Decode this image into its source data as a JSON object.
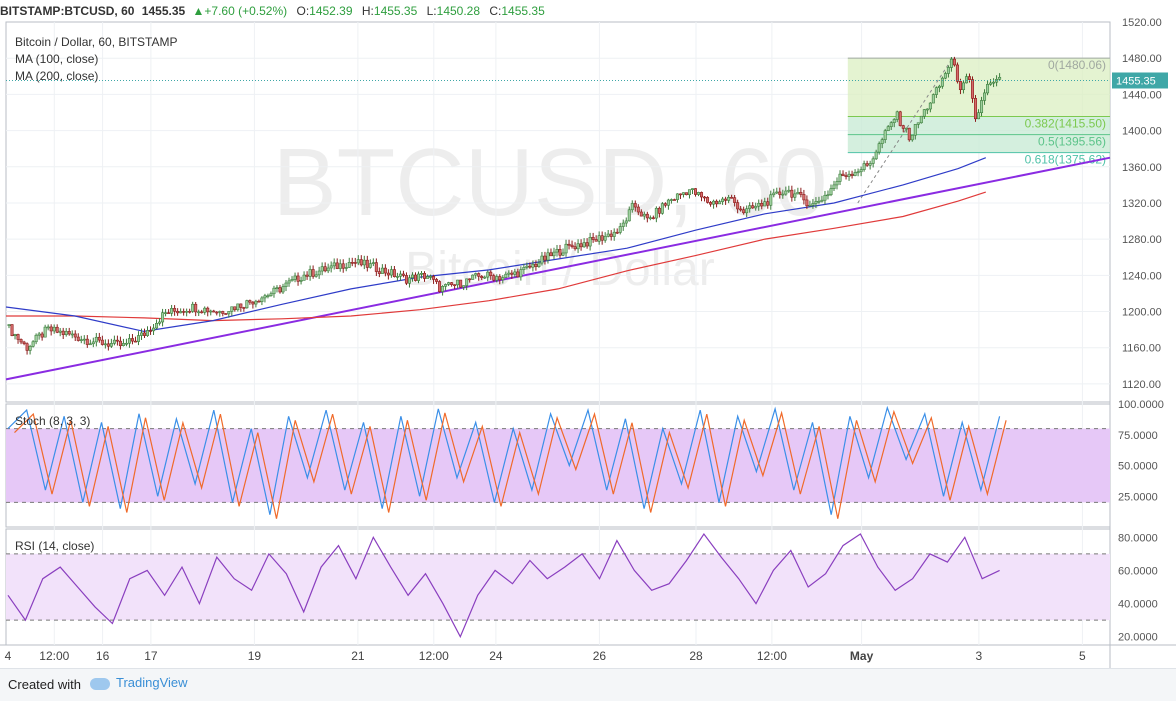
{
  "header": {
    "symbol": "BITSTAMP:BTCUSD, 60",
    "last": "1455.35",
    "change": "▲+7.60 (+0.52%)",
    "o_label": "O:",
    "o_value": "1452.39",
    "h_label": "H:",
    "h_value": "1455.35",
    "l_label": "L:",
    "l_value": "1450.28",
    "c_label": "C:",
    "c_value": "1455.35"
  },
  "legend": {
    "title": "Bitcoin / Dollar, 60, BITSTAMP",
    "ma100": "MA (100, close)",
    "ma200": "MA (200, close)"
  },
  "watermark": {
    "main": "BTCUSD, 60",
    "sub": "Bitcoin / Dollar"
  },
  "footer": {
    "created": "Created with",
    "brand": "TradingView"
  },
  "colors": {
    "up": "#3c7d3c",
    "down": "#8c1a1a",
    "ma100": "#2f3cc8",
    "ma200": "#e03a3a",
    "trend": "#8a2be2",
    "fib_fill": "#d8eebd",
    "fib_fill2": "#c9ebd6",
    "stoch_k": "#3a8fe8",
    "stoch_d": "#f06a2a",
    "stoch_band": "#e6c8f7",
    "rsi": "#8a3fbf",
    "rsi_band": "#f2e2fa",
    "brand": "#3a8fd6"
  },
  "chart_data": [
    {
      "type": "candlestick",
      "title": "Bitcoin / Dollar, 60, BITSTAMP",
      "ylim": [
        1100,
        1520
      ],
      "y_ticks": [
        1120,
        1160,
        1200,
        1240,
        1280,
        1320,
        1360,
        1400,
        1440,
        1480,
        1520
      ],
      "last_price": 1455.35,
      "x_ticks": [
        "4",
        "12:00",
        "16",
        "17",
        "19",
        "21",
        "12:00",
        "24",
        "26",
        "28",
        "12:00",
        "May",
        "3",
        "5"
      ],
      "x_tick_pos": [
        0.0,
        0.07,
        0.14,
        0.21,
        0.36,
        0.51,
        0.62,
        0.71,
        0.86,
        1.0,
        1.11,
        1.24,
        1.41,
        1.56
      ],
      "x_domain": [
        0,
        1.6
      ],
      "price_path": [
        [
          0,
          1185
        ],
        [
          0.03,
          1160
        ],
        [
          0.06,
          1180
        ],
        [
          0.09,
          1175
        ],
        [
          0.12,
          1168
        ],
        [
          0.17,
          1162
        ],
        [
          0.2,
          1175
        ],
        [
          0.23,
          1198
        ],
        [
          0.27,
          1205
        ],
        [
          0.31,
          1200
        ],
        [
          0.35,
          1210
        ],
        [
          0.39,
          1222
        ],
        [
          0.43,
          1240
        ],
        [
          0.47,
          1248
        ],
        [
          0.5,
          1255
        ],
        [
          0.53,
          1250
        ],
        [
          0.58,
          1236
        ],
        [
          0.61,
          1240
        ],
        [
          0.63,
          1225
        ],
        [
          0.66,
          1232
        ],
        [
          0.69,
          1240
        ],
        [
          0.72,
          1238
        ],
        [
          0.75,
          1245
        ],
        [
          0.78,
          1258
        ],
        [
          0.81,
          1270
        ],
        [
          0.85,
          1278
        ],
        [
          0.89,
          1290
        ],
        [
          0.91,
          1318
        ],
        [
          0.93,
          1300
        ],
        [
          0.96,
          1322
        ],
        [
          0.99,
          1335
        ],
        [
          1.02,
          1320
        ],
        [
          1.05,
          1325
        ],
        [
          1.07,
          1310
        ],
        [
          1.1,
          1320
        ],
        [
          1.13,
          1335
        ],
        [
          1.15,
          1326
        ],
        [
          1.17,
          1318
        ],
        [
          1.19,
          1330
        ],
        [
          1.21,
          1350
        ],
        [
          1.23,
          1355
        ],
        [
          1.25,
          1362
        ],
        [
          1.27,
          1390
        ],
        [
          1.29,
          1418
        ],
        [
          1.31,
          1392
        ],
        [
          1.33,
          1420
        ],
        [
          1.35,
          1445
        ],
        [
          1.37,
          1478
        ],
        [
          1.385,
          1445
        ],
        [
          1.395,
          1460
        ],
        [
          1.405,
          1410
        ],
        [
          1.42,
          1448
        ],
        [
          1.44,
          1455
        ]
      ],
      "ma100_path": [
        [
          0,
          1205
        ],
        [
          0.1,
          1195
        ],
        [
          0.2,
          1178
        ],
        [
          0.3,
          1190
        ],
        [
          0.4,
          1208
        ],
        [
          0.5,
          1225
        ],
        [
          0.6,
          1238
        ],
        [
          0.7,
          1246
        ],
        [
          0.8,
          1258
        ],
        [
          0.9,
          1270
        ],
        [
          1.0,
          1290
        ],
        [
          1.1,
          1308
        ],
        [
          1.2,
          1320
        ],
        [
          1.3,
          1340
        ],
        [
          1.38,
          1358
        ],
        [
          1.42,
          1370
        ]
      ],
      "ma200_path": [
        [
          0,
          1195
        ],
        [
          0.1,
          1195
        ],
        [
          0.2,
          1193
        ],
        [
          0.3,
          1190
        ],
        [
          0.4,
          1192
        ],
        [
          0.5,
          1195
        ],
        [
          0.6,
          1202
        ],
        [
          0.7,
          1212
        ],
        [
          0.8,
          1225
        ],
        [
          0.9,
          1245
        ],
        [
          1.0,
          1262
        ],
        [
          1.1,
          1280
        ],
        [
          1.2,
          1292
        ],
        [
          1.3,
          1305
        ],
        [
          1.38,
          1322
        ],
        [
          1.42,
          1332
        ]
      ],
      "trendline": [
        [
          0,
          1125
        ],
        [
          1.6,
          1370
        ]
      ],
      "fibonacci": {
        "x_range": [
          1.22,
          1.6
        ],
        "levels": [
          {
            "ratio": 0,
            "price": 1480.06,
            "label": "0(1480.06)"
          },
          {
            "ratio": 0.382,
            "price": 1415.5,
            "label": "0.382(1415.50)"
          },
          {
            "ratio": 0.5,
            "price": 1395.56,
            "label": "0.5(1395.56)"
          },
          {
            "ratio": 0.618,
            "price": 1375.62,
            "label": "0.618(1375.62)"
          }
        ]
      }
    },
    {
      "type": "line",
      "title": "Stoch (8, 3, 3)",
      "ylim": [
        0,
        100
      ],
      "y_ticks": [
        25,
        50,
        75,
        100
      ],
      "tick_labels": [
        "25.0000",
        "50.0000",
        "75.0000",
        "100.0000"
      ],
      "band": [
        20,
        80
      ],
      "series": [
        {
          "values": [
            80,
            95,
            30,
            90,
            20,
            85,
            15,
            92,
            25,
            88,
            35,
            95,
            20,
            80,
            10,
            90,
            40,
            95,
            30,
            85,
            15,
            90,
            25,
            96,
            40,
            85,
            20,
            80,
            30,
            92,
            50,
            95,
            30,
            88,
            15,
            80,
            35,
            95,
            20,
            90,
            45,
            96,
            30,
            85,
            10,
            90,
            40,
            97,
            55,
            92,
            25,
            85,
            30,
            90
          ]
        }
      ]
    },
    {
      "type": "line",
      "title": "RSI (14, close)",
      "ylim": [
        15,
        85
      ],
      "y_ticks": [
        20,
        40,
        60,
        80
      ],
      "tick_labels": [
        "20.0000",
        "40.0000",
        "60.0000",
        "80.0000"
      ],
      "band": [
        30,
        70
      ],
      "series": [
        {
          "values": [
            45,
            30,
            55,
            62,
            50,
            38,
            28,
            55,
            60,
            45,
            62,
            40,
            68,
            55,
            48,
            70,
            58,
            35,
            62,
            75,
            55,
            80,
            62,
            45,
            58,
            40,
            20,
            45,
            60,
            52,
            66,
            55,
            62,
            70,
            55,
            78,
            60,
            48,
            52,
            66,
            82,
            68,
            55,
            40,
            60,
            72,
            50,
            58,
            75,
            82,
            62,
            48,
            55,
            70,
            65,
            80,
            55,
            60
          ]
        }
      ]
    }
  ]
}
